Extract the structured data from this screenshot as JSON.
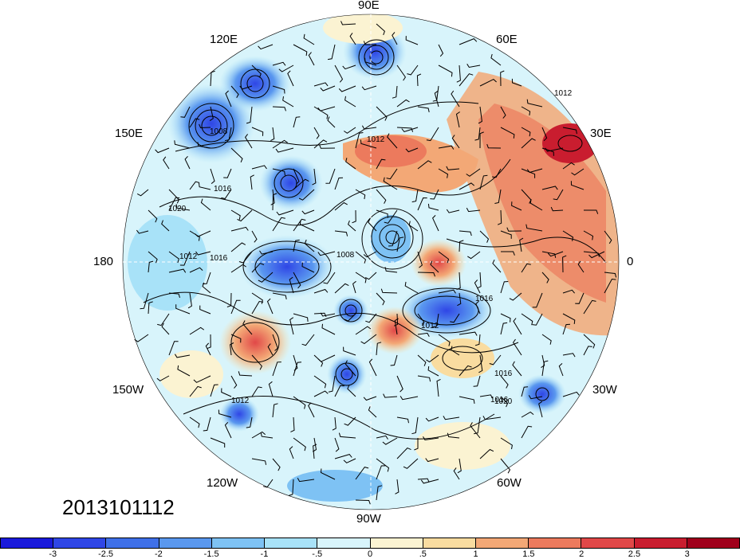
{
  "map": {
    "date_stamp": "2013101112",
    "projection": "north-polar-stereographic",
    "longitude_labels": {
      "lon_90E": "90E",
      "lon_60E": "60E",
      "lon_120E": "120E",
      "lon_30E": "30E",
      "lon_150E": "150E",
      "lon_180": "180",
      "lon_0": "0",
      "lon_150W": "150W",
      "lon_30W": "30W",
      "lon_120W": "120W",
      "lon_60W": "60W",
      "lon_90W": "90W"
    },
    "contour_labels": [
      "1012",
      "1016",
      "1020",
      "1008",
      "1016",
      "1012",
      "1008",
      "1012",
      "1016",
      "1016",
      "1020",
      "1016",
      "1012",
      "1012"
    ],
    "colorbar": {
      "colors": [
        "#1a1adb",
        "#2f46e6",
        "#3f70e8",
        "#5a98ef",
        "#7ec2f4",
        "#a8e2f8",
        "#d8f4fb",
        "#fbf3d2",
        "#f9dca0",
        "#f3a876",
        "#ec7a5d",
        "#e14848",
        "#c91d2f",
        "#a0001b"
      ],
      "tick_labels": [
        "-3",
        "-2.5",
        "-2",
        "-1.5",
        "-1",
        "-.5",
        "0",
        ".5",
        "1",
        "1.5",
        "2",
        "2.5",
        "3"
      ]
    }
  }
}
